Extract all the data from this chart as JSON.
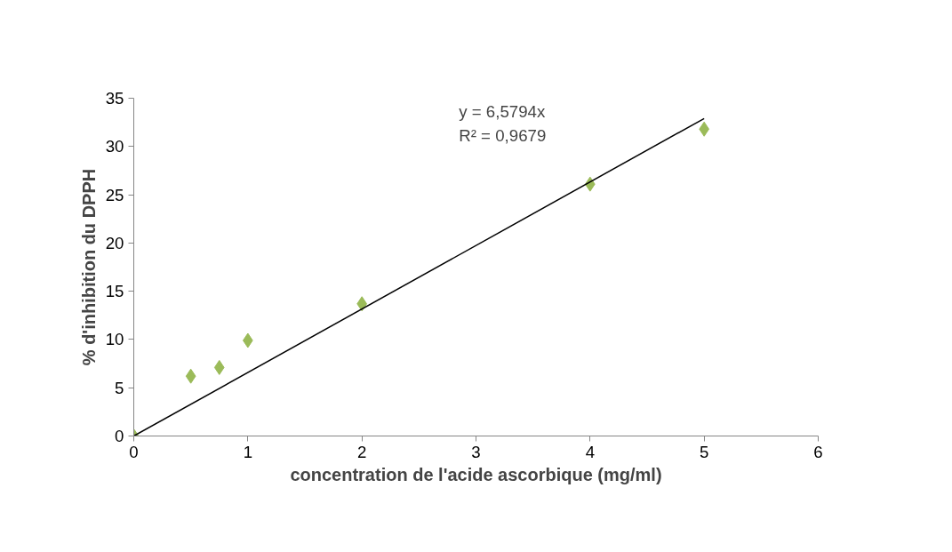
{
  "chart_data": {
    "type": "scatter",
    "xlabel": "concentration de l'acide ascorbique (mg/ml)",
    "ylabel": "% d'inhibition du DPPH",
    "x": [
      0,
      0.5,
      0.75,
      1,
      2,
      4,
      5
    ],
    "series": [
      {
        "color": "#9bbb59",
        "marker": "diamond",
        "values": [
          0,
          6.2,
          7.1,
          9.9,
          13.7,
          26.1,
          31.8
        ]
      },
      {
        "type": "line",
        "color": "#000000",
        "x": [
          0,
          5
        ],
        "values": [
          0,
          32.9
        ],
        "marker": "none",
        "line_style": "solid"
      }
    ],
    "annotations": [
      "y = 6,5794x",
      "R² = 0,9679"
    ],
    "xlim": [
      0,
      6
    ],
    "xticks": [
      0,
      1,
      2,
      3,
      4,
      5,
      6
    ],
    "ylim": [
      0,
      35
    ],
    "yticks": [
      0,
      5,
      10,
      15,
      20,
      25,
      30,
      35
    ],
    "grid": false
  }
}
